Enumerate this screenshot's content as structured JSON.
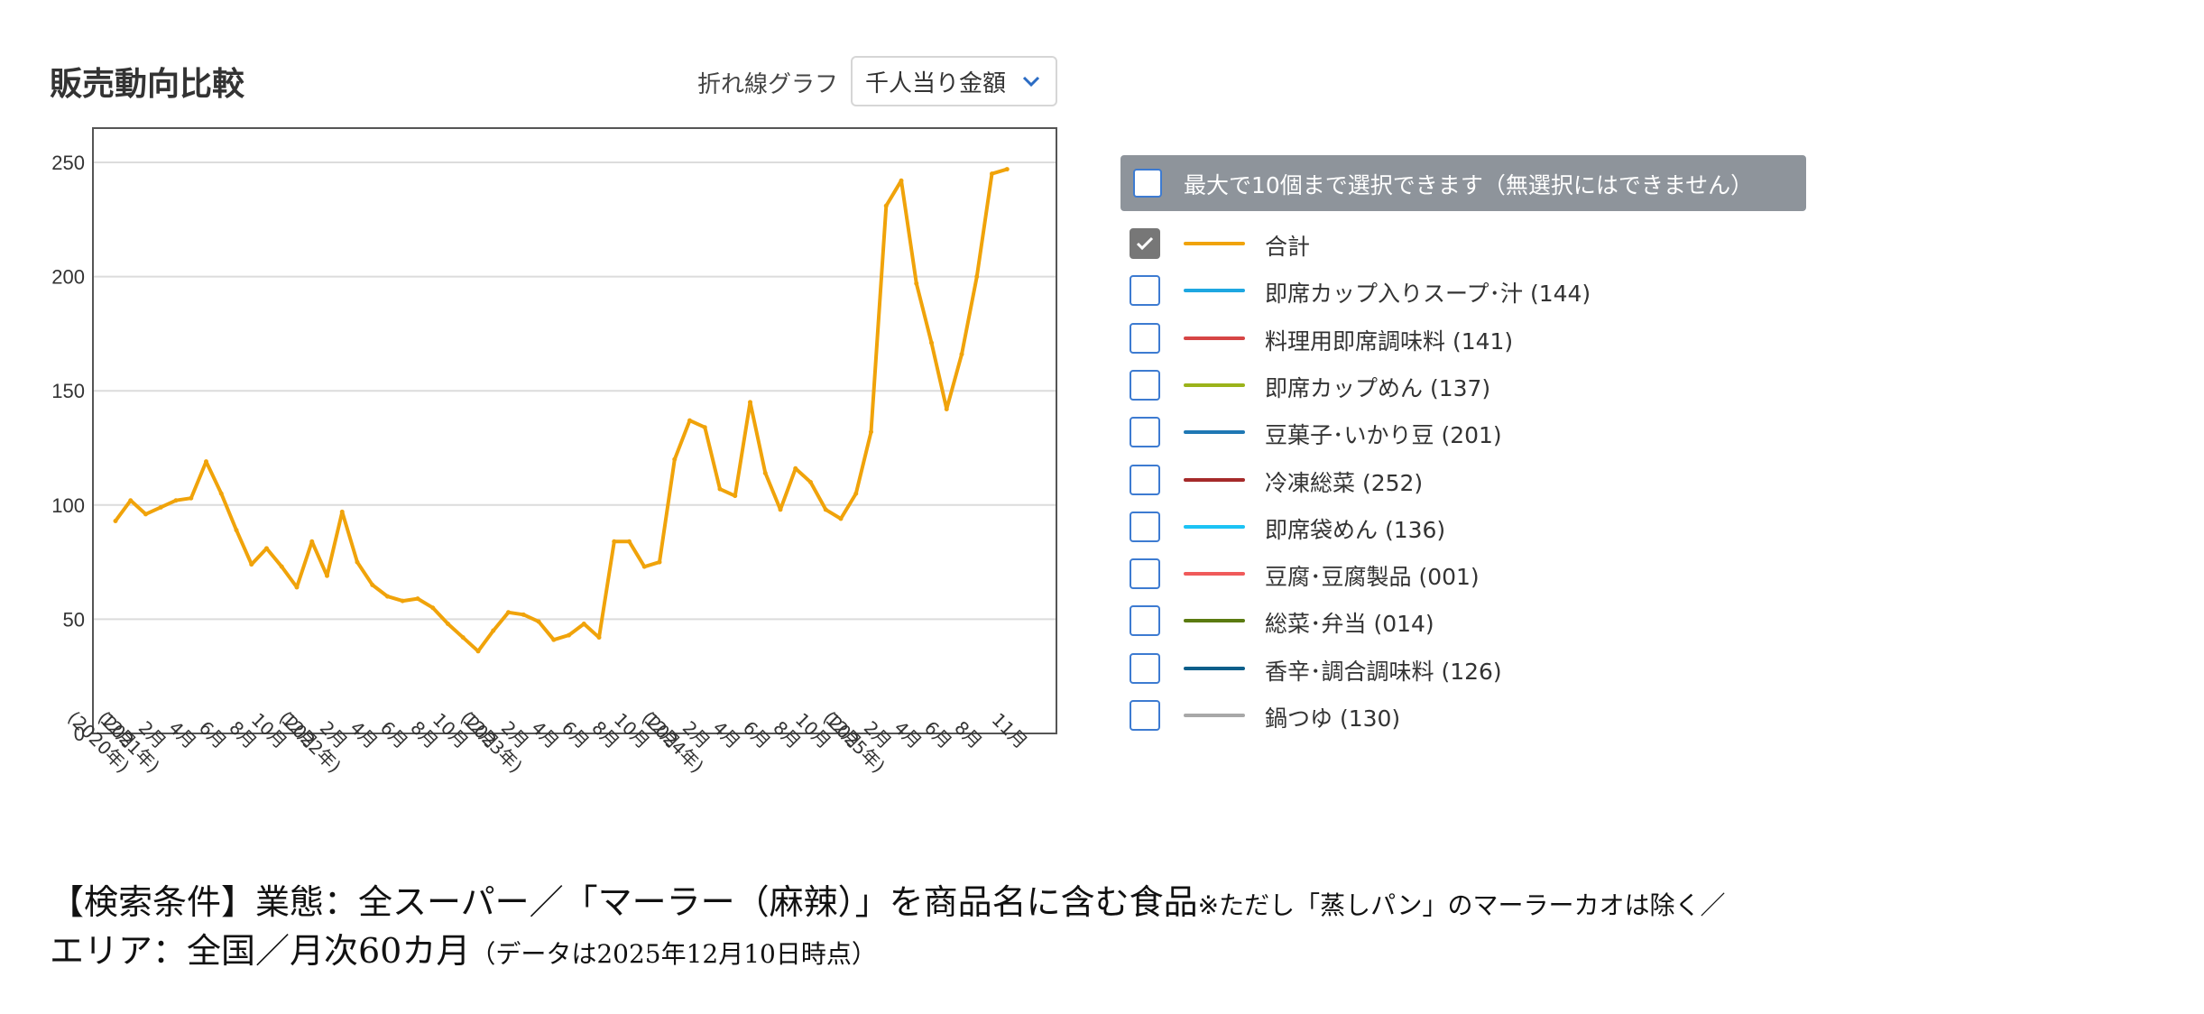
{
  "header": {
    "title": "販売動向比較",
    "chart_type_label": "折れ線グラフ",
    "metric_select": {
      "value": "千人当り金額"
    }
  },
  "legend": {
    "header_text": "最大で10個まで選択できます（無選択にはできません）",
    "items": [
      {
        "label": "合計",
        "color": "#f0a30a",
        "checked": true
      },
      {
        "label": "即席カップ入りスープ･汁 (144)",
        "color": "#1ea7e1",
        "checked": false
      },
      {
        "label": "料理用即席調味料 (141)",
        "color": "#d64545",
        "checked": false
      },
      {
        "label": "即席カップめん (137)",
        "color": "#9bb31a",
        "checked": false
      },
      {
        "label": "豆菓子･いかり豆 (201)",
        "color": "#1f78b4",
        "checked": false
      },
      {
        "label": "冷凍総菜 (252)",
        "color": "#a52a2a",
        "checked": false
      },
      {
        "label": "即席袋めん (136)",
        "color": "#1cc3f5",
        "checked": false
      },
      {
        "label": "豆腐･豆腐製品 (001)",
        "color": "#f05a5a",
        "checked": false
      },
      {
        "label": "総菜･弁当 (014)",
        "color": "#5a7a10",
        "checked": false
      },
      {
        "label": "香辛･調合調味料 (126)",
        "color": "#0b5e8a",
        "checked": false
      },
      {
        "label": "鍋つゆ (130)",
        "color": "#a8a8a8",
        "checked": false
      }
    ]
  },
  "chart_data": {
    "type": "line",
    "title": "",
    "xlabel": "",
    "ylabel": "",
    "ylim": [
      0,
      265
    ],
    "yticks": [
      0,
      50,
      100,
      150,
      200,
      250
    ],
    "grid": true,
    "x": [
      "2020-12",
      "2021-01",
      "2021-02",
      "2021-03",
      "2021-04",
      "2021-05",
      "2021-06",
      "2021-07",
      "2021-08",
      "2021-09",
      "2021-10",
      "2021-11",
      "2021-12",
      "2022-01",
      "2022-02",
      "2022-03",
      "2022-04",
      "2022-05",
      "2022-06",
      "2022-07",
      "2022-08",
      "2022-09",
      "2022-10",
      "2022-11",
      "2022-12",
      "2023-01",
      "2023-02",
      "2023-03",
      "2023-04",
      "2023-05",
      "2023-06",
      "2023-07",
      "2023-08",
      "2023-09",
      "2023-10",
      "2023-11",
      "2023-12",
      "2024-01",
      "2024-02",
      "2024-03",
      "2024-04",
      "2024-05",
      "2024-06",
      "2024-07",
      "2024-08",
      "2024-09",
      "2024-10",
      "2024-11",
      "2024-12",
      "2025-01",
      "2025-02",
      "2025-03",
      "2025-04",
      "2025-05",
      "2025-06",
      "2025-07",
      "2025-08",
      "2025-09",
      "2025-10",
      "2025-11"
    ],
    "x_tick_labels": [
      [
        "12月",
        "(2020年)"
      ],
      [
        "2月",
        "(2021年)"
      ],
      [
        "4月"
      ],
      [
        "6月"
      ],
      [
        "8月"
      ],
      [
        "10月"
      ],
      [
        "12月"
      ],
      [
        "2月",
        "(2022年)"
      ],
      [
        "4月"
      ],
      [
        "6月"
      ],
      [
        "8月"
      ],
      [
        "10月"
      ],
      [
        "12月"
      ],
      [
        "2月",
        "(2023年)"
      ],
      [
        "4月"
      ],
      [
        "6月"
      ],
      [
        "8月"
      ],
      [
        "10月"
      ],
      [
        "12月"
      ],
      [
        "2月",
        "(2024年)"
      ],
      [
        "4月"
      ],
      [
        "6月"
      ],
      [
        "8月"
      ],
      [
        "10月"
      ],
      [
        "12月"
      ],
      [
        "2月",
        "(2025年)"
      ],
      [
        "4月"
      ],
      [
        "6月"
      ],
      [
        "8月"
      ],
      [
        "11月"
      ]
    ],
    "x_tick_index": [
      0,
      2,
      4,
      6,
      8,
      10,
      12,
      14,
      16,
      18,
      20,
      22,
      24,
      26,
      28,
      30,
      32,
      34,
      36,
      38,
      40,
      42,
      44,
      46,
      48,
      50,
      52,
      54,
      56,
      59
    ],
    "series": [
      {
        "name": "合計",
        "color": "#f0a30a",
        "values": [
          93,
          102,
          96,
          99,
          102,
          103,
          119,
          105,
          89,
          74,
          81,
          73,
          64,
          84,
          69,
          97,
          75,
          65,
          60,
          58,
          59,
          55,
          48,
          42,
          36,
          45,
          53,
          52,
          49,
          41,
          43,
          48,
          42,
          84,
          84,
          73,
          75,
          120,
          137,
          134,
          107,
          104,
          145,
          114,
          98,
          116,
          110,
          98,
          94,
          105,
          132,
          231,
          242,
          197,
          171,
          142,
          166,
          200,
          245,
          247
        ]
      }
    ]
  },
  "footer": {
    "conditions_main": "【検索条件】業態：全スーパー／「マーラー（麻辣）」を商品名に含む食品",
    "conditions_note": "※ただし「蒸しパン」のマーラーカオは除く／",
    "conditions_line2": "エリア：全国／月次60カ月",
    "conditions_date": "（データは2025年12月10日時点）"
  }
}
